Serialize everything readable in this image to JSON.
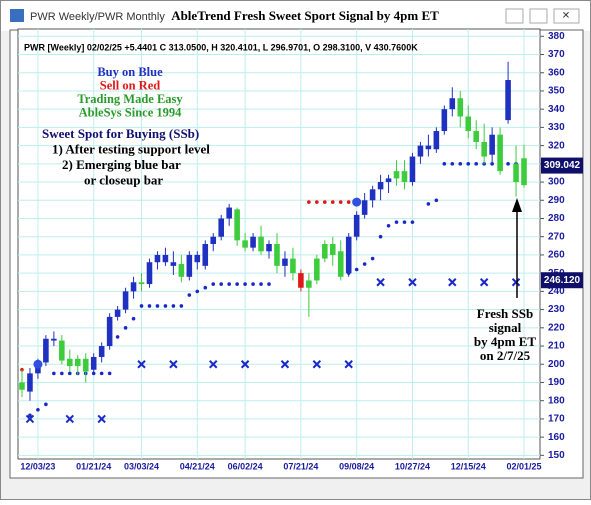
{
  "window_title": "PWR Weekly/PWR Monthly",
  "chart_data": {
    "type": "candlestick",
    "title": "AbleTrend Fresh Sweet Sport Signal by 4pm ET",
    "subtitle": "PWR [Weekly] 02/02/25 +5.4401 C 313.0500, H 320.4101, L 296.9701, O 298.3100, V 430.7600K",
    "categories": [
      null,
      null,
      "12/03/23",
      null,
      null,
      null,
      null,
      null,
      null,
      "01/21/24",
      null,
      null,
      null,
      null,
      null,
      "03/03/24",
      null,
      null,
      null,
      null,
      null,
      null,
      "04/21/24",
      null,
      null,
      null,
      null,
      null,
      "06/02/24",
      null,
      null,
      null,
      null,
      null,
      null,
      "07/21/24",
      null,
      null,
      null,
      null,
      null,
      null,
      "09/08/24",
      null,
      null,
      null,
      null,
      null,
      null,
      "10/27/24",
      null,
      null,
      null,
      null,
      null,
      null,
      "12/15/24",
      null,
      null,
      null,
      null,
      null,
      null,
      "02/01/25"
    ],
    "open": [
      190,
      185,
      195,
      201,
      214,
      213,
      203,
      199,
      203,
      197,
      204,
      210,
      226,
      230,
      240,
      245,
      244,
      256,
      260,
      256,
      255,
      248,
      260,
      254,
      266,
      270,
      280,
      285,
      268,
      264,
      270,
      262,
      266,
      254,
      258,
      250,
      242,
      246,
      258,
      266,
      262,
      250,
      270,
      282,
      290,
      296,
      300,
      302,
      306,
      300,
      314,
      320,
      318,
      328,
      340,
      346,
      336,
      328,
      322,
      315,
      326,
      334,
      310,
      298.31
    ],
    "high": [
      197,
      198,
      203,
      216,
      218,
      216,
      208,
      205,
      206,
      206,
      212,
      228,
      232,
      242,
      248,
      250,
      258,
      262,
      264,
      262,
      260,
      262,
      262,
      268,
      272,
      282,
      288,
      286,
      272,
      272,
      276,
      268,
      272,
      262,
      264,
      252,
      250,
      260,
      268,
      270,
      268,
      272,
      284,
      294,
      298,
      304,
      304,
      312,
      312,
      316,
      322,
      326,
      330,
      342,
      352,
      350,
      342,
      334,
      332,
      330,
      330,
      366,
      320,
      320.41
    ],
    "low": [
      182,
      180,
      192,
      199,
      210,
      200,
      196,
      194,
      190,
      195,
      201,
      208,
      224,
      228,
      236,
      240,
      242,
      252,
      254,
      249,
      245,
      246,
      252,
      252,
      262,
      268,
      276,
      265,
      262,
      262,
      260,
      258,
      250,
      248,
      246,
      240,
      226,
      244,
      256,
      254,
      246,
      248,
      268,
      280,
      286,
      290,
      294,
      298,
      296,
      298,
      310,
      314,
      316,
      326,
      336,
      330,
      324,
      318,
      310,
      310,
      304,
      332,
      292,
      296.97
    ],
    "close": [
      186,
      195,
      201,
      214,
      213,
      202,
      199,
      203,
      196,
      204,
      210,
      226,
      230,
      240,
      245,
      244,
      256,
      260,
      256,
      254,
      248,
      260,
      256,
      266,
      270,
      280,
      286,
      268,
      264,
      270,
      262,
      266,
      254,
      258,
      250,
      242,
      246,
      258,
      266,
      260,
      248,
      270,
      282,
      290,
      296,
      300,
      302,
      306,
      300,
      314,
      320,
      318,
      328,
      340,
      346,
      336,
      328,
      322,
      314,
      326,
      306,
      356,
      300,
      313.05
    ],
    "bar_colors": [
      "#3ccc3c",
      "#2030c0",
      "#2030c0",
      "#2030c0",
      "#2030c0",
      "#3ccc3c",
      "#3ccc3c",
      "#3ccc3c",
      "#3ccc3c",
      "#2030c0",
      "#2030c0",
      "#2030c0",
      "#2030c0",
      "#2030c0",
      "#2030c0",
      "#3ccc3c",
      "#2030c0",
      "#2030c0",
      "#2030c0",
      "#2030c0",
      "#3ccc3c",
      "#2030c0",
      "#2030c0",
      "#2030c0",
      "#2030c0",
      "#2030c0",
      "#2030c0",
      "#3ccc3c",
      "#3ccc3c",
      "#2030c0",
      "#3ccc3c",
      "#2030c0",
      "#3ccc3c",
      "#2030c0",
      "#3ccc3c",
      "#e01818",
      "#3ccc3c",
      "#3ccc3c",
      "#3ccc3c",
      "#3ccc3c",
      "#3ccc3c",
      "#2030c0",
      "#2030c0",
      "#2030c0",
      "#2030c0",
      "#2030c0",
      "#2030c0",
      "#3ccc3c",
      "#3ccc3c",
      "#2030c0",
      "#2030c0",
      "#2030c0",
      "#2030c0",
      "#2030c0",
      "#2030c0",
      "#3ccc3c",
      "#3ccc3c",
      "#3ccc3c",
      "#3ccc3c",
      "#2030c0",
      "#3ccc3c",
      "#2030c0",
      "#3ccc3c",
      "#3ccc3c"
    ],
    "stops": [
      {
        "color": "#1a28c8",
        "values": [
          null,
          172,
          175,
          178,
          195,
          195,
          195,
          195,
          195,
          195,
          195,
          195,
          215,
          220,
          225,
          232,
          232,
          232,
          232,
          232,
          232,
          238,
          240,
          242,
          244,
          244,
          244,
          244,
          244,
          244,
          244,
          244,
          null,
          null,
          null,
          null,
          null,
          null,
          null,
          null,
          null,
          250,
          252,
          255,
          258,
          270,
          276,
          278,
          278,
          278,
          null,
          288,
          290,
          310,
          310,
          310,
          310,
          310,
          310,
          310,
          310,
          310,
          310,
          null
        ]
      },
      {
        "color": "#e01818",
        "values": [
          197,
          null,
          null,
          null,
          null,
          null,
          null,
          null,
          null,
          null,
          null,
          null,
          null,
          null,
          null,
          null,
          null,
          null,
          null,
          null,
          null,
          null,
          null,
          null,
          null,
          null,
          null,
          null,
          null,
          null,
          null,
          null,
          null,
          null,
          null,
          null,
          289,
          289,
          289,
          289,
          289,
          289,
          null,
          null,
          null,
          null,
          null,
          null,
          null,
          null,
          null,
          null,
          null,
          null,
          null,
          null,
          null,
          null,
          null,
          null,
          null,
          null,
          null,
          null
        ]
      }
    ],
    "x_marks": {
      "color": "#1a28c8",
      "x": [
        1,
        6,
        10,
        15,
        19,
        24,
        28,
        33,
        37,
        41,
        45,
        49,
        54,
        58,
        62
      ],
      "values": [
        170,
        170,
        170,
        200,
        200,
        200,
        200,
        200,
        200,
        200,
        245,
        245,
        245,
        245,
        245
      ]
    },
    "signals": {
      "color": "#3050e0",
      "x": [
        2,
        42
      ],
      "values": [
        200,
        289
      ]
    },
    "ylim": [
      148,
      384
    ],
    "yticks": [
      150,
      160,
      170,
      180,
      190,
      200,
      210,
      220,
      230,
      240,
      250,
      260,
      270,
      280,
      290,
      300,
      310,
      320,
      330,
      340,
      350,
      360,
      370,
      380
    ],
    "grid": true,
    "price_labels": [
      {
        "value": 309.042,
        "label": "309.042",
        "color": "#10106a"
      },
      {
        "value": 246.12,
        "label": "246.120",
        "color": "#10106a"
      }
    ],
    "legend_notes": [
      {
        "text": "Buy on Blue",
        "color": "#2030c0"
      },
      {
        "text": "Sell on Red",
        "color": "#e01818"
      },
      {
        "text": "Trading Made Easy",
        "color": "#2a9a2a"
      },
      {
        "text": "AbleSys Since 1994",
        "color": "#2a9a2a"
      }
    ],
    "annotations": [
      "Sweet Spot for Buying (SSb)",
      "1) After testing support level",
      "2) Emerging blue bar",
      "or closeup bar"
    ],
    "callout": [
      "Fresh SSb",
      "signal",
      "by 4pm ET",
      "on 2/7/25"
    ]
  }
}
